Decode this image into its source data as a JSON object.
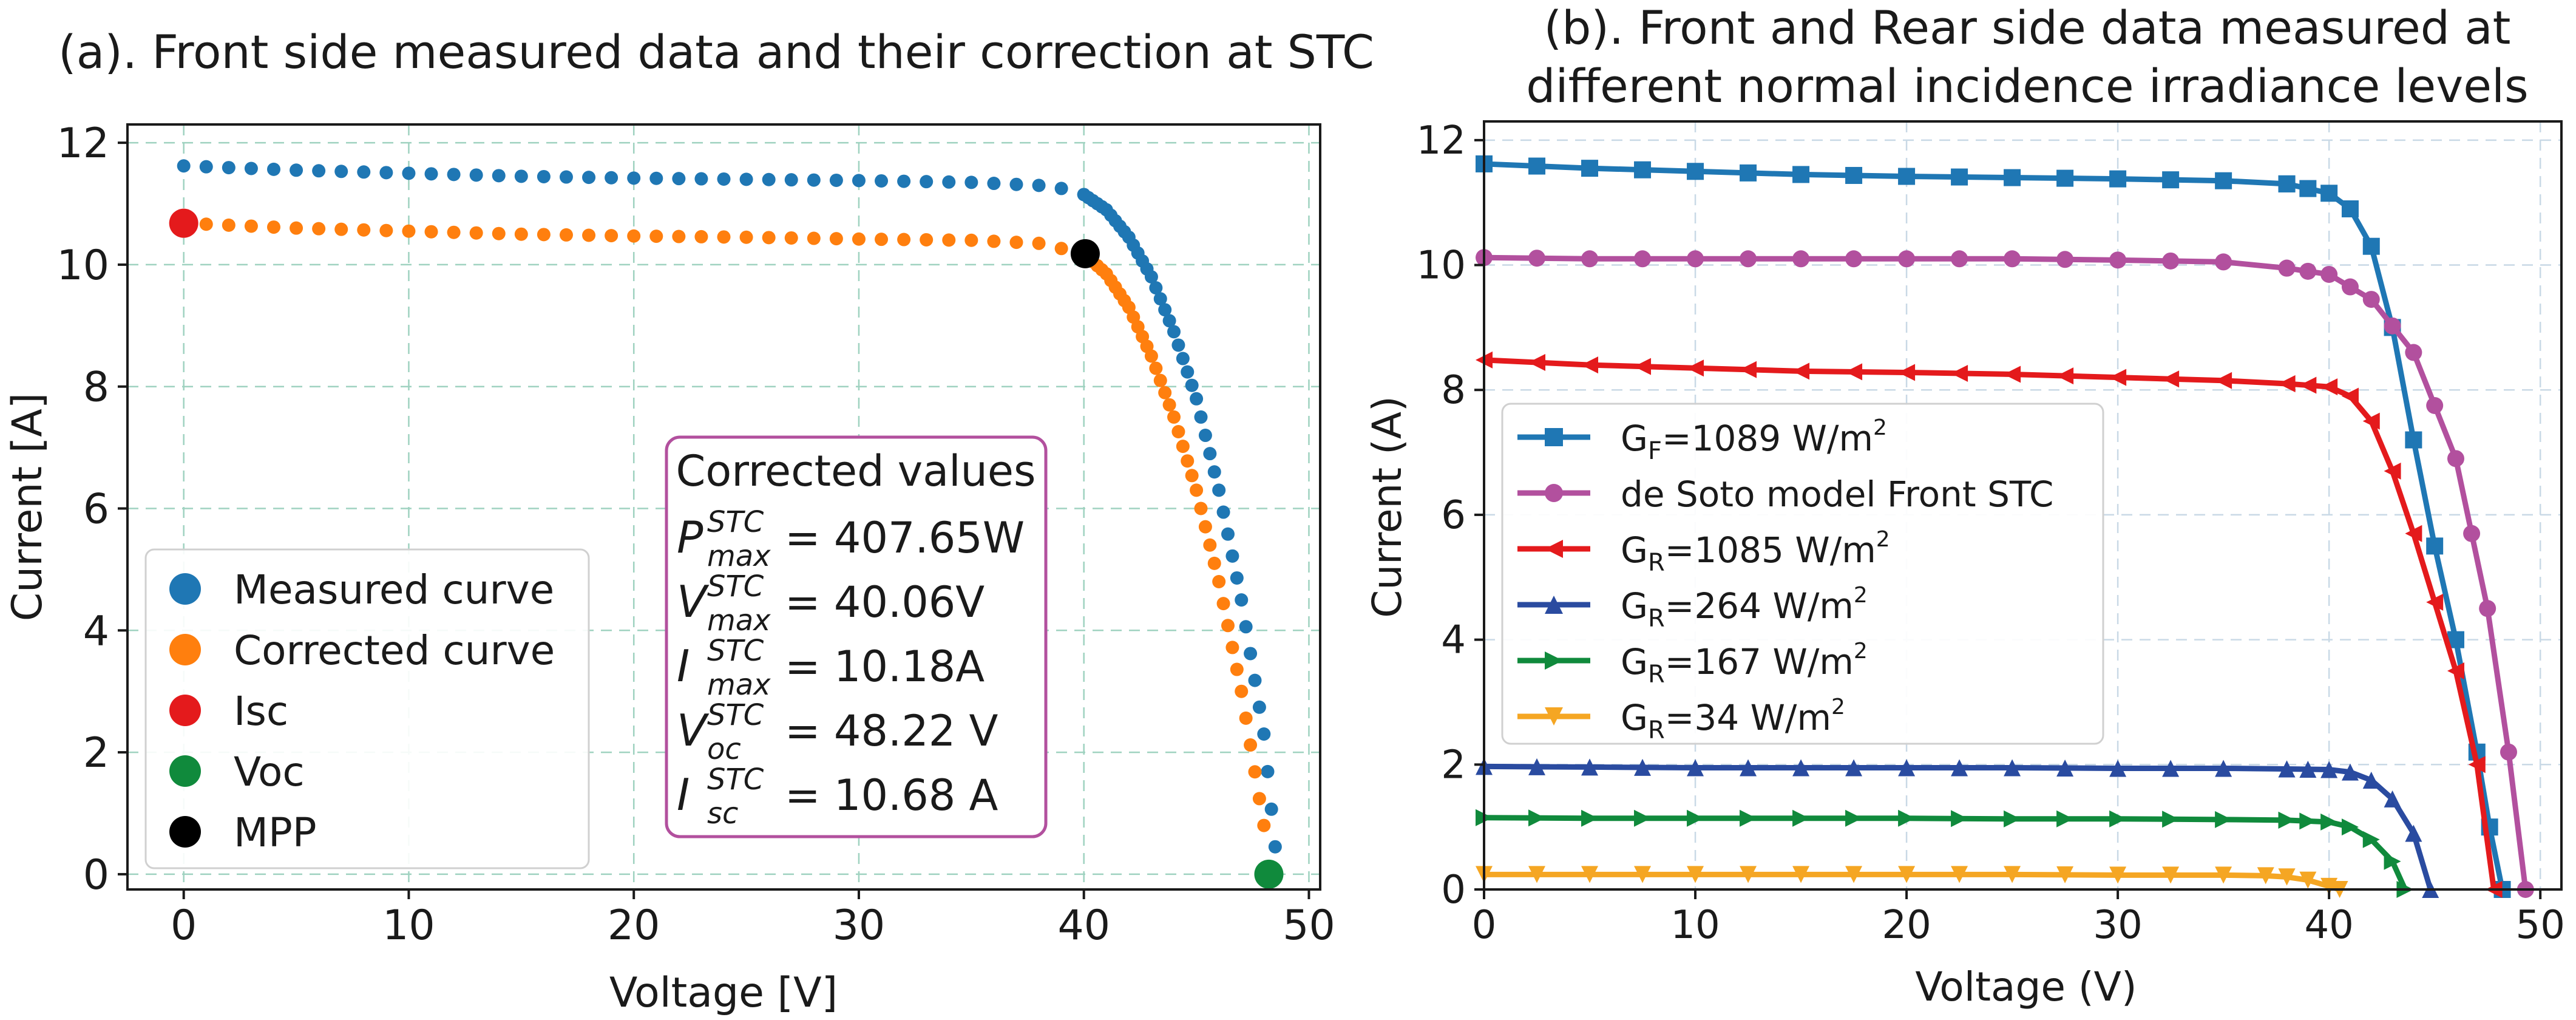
{
  "chart_data": [
    {
      "id": "a",
      "type": "scatter",
      "title": "(a). Front side measured data and their correction at STC",
      "xlabel": "Voltage [V]",
      "ylabel": "Current [A]",
      "xlim": [
        -2.5,
        50.5
      ],
      "ylim": [
        -0.25,
        12.3
      ],
      "xticks": [
        0,
        10,
        20,
        30,
        40,
        50
      ],
      "yticks": [
        0,
        2,
        4,
        6,
        8,
        10,
        12
      ],
      "grid": true,
      "legend": {
        "position": "lower-left",
        "entries": [
          {
            "label": "Measured curve",
            "color": "#1f77b4"
          },
          {
            "label": "Corrected curve",
            "color": "#ff7f0e"
          },
          {
            "label": "Isc",
            "color": "#e41a1c"
          },
          {
            "label": "Voc",
            "color": "#108a3c"
          },
          {
            "label": "MPP",
            "color": "#000000"
          }
        ]
      },
      "series": [
        {
          "name": "Measured curve",
          "color": "#1f77b4",
          "marker": "circle",
          "points": [
            [
              0,
              11.62
            ],
            [
              5,
              11.55
            ],
            [
              10,
              11.5
            ],
            [
              15,
              11.45
            ],
            [
              20,
              11.42
            ],
            [
              25,
              11.4
            ],
            [
              30,
              11.38
            ],
            [
              35,
              11.35
            ],
            [
              38,
              11.3
            ],
            [
              39,
              11.25
            ],
            [
              40,
              11.15
            ],
            [
              41,
              10.9
            ],
            [
              42,
              10.45
            ],
            [
              43,
              9.8
            ],
            [
              44,
              8.9
            ],
            [
              45,
              7.8
            ],
            [
              46,
              6.3
            ],
            [
              47,
              4.5
            ],
            [
              48,
              2.3
            ],
            [
              48.5,
              0.45
            ]
          ]
        },
        {
          "name": "Corrected curve",
          "color": "#ff7f0e",
          "marker": "circle",
          "points": [
            [
              0,
              10.68
            ],
            [
              5,
              10.6
            ],
            [
              10,
              10.55
            ],
            [
              15,
              10.5
            ],
            [
              20,
              10.47
            ],
            [
              25,
              10.45
            ],
            [
              30,
              10.42
            ],
            [
              35,
              10.4
            ],
            [
              38,
              10.35
            ],
            [
              40,
              10.18
            ],
            [
              41,
              9.85
            ],
            [
              42,
              9.3
            ],
            [
              43,
              8.5
            ],
            [
              44,
              7.5
            ],
            [
              45,
              6.3
            ],
            [
              46,
              4.8
            ],
            [
              47,
              3.0
            ],
            [
              48,
              0.8
            ],
            [
              48.22,
              0
            ]
          ]
        },
        {
          "name": "Isc",
          "color": "#e41a1c",
          "marker": "circle",
          "points": [
            [
              0,
              10.68
            ]
          ]
        },
        {
          "name": "Voc",
          "color": "#108a3c",
          "marker": "circle",
          "points": [
            [
              48.22,
              0
            ]
          ]
        },
        {
          "name": "MPP",
          "color": "#000000",
          "marker": "circle",
          "points": [
            [
              40.06,
              10.18
            ]
          ]
        }
      ],
      "annotation": {
        "heading": "Corrected values",
        "rows": [
          {
            "var": "P",
            "sup": "STC",
            "sub": "max",
            "value": "= 407.65W"
          },
          {
            "var": "V",
            "sup": "STC",
            "sub": "max",
            "value": "= 40.06V"
          },
          {
            "var": "I",
            "sup": "STC",
            "sub": "max",
            "value": "= 10.18A"
          },
          {
            "var": "V",
            "sup": "STC",
            "sub": "oc",
            "value": "= 48.22 V"
          },
          {
            "var": "I",
            "sup": "STC",
            "sub": "sc",
            "value": "= 10.68 A"
          }
        ]
      }
    },
    {
      "id": "b",
      "type": "line",
      "title_lines": [
        "(b). Front and Rear side data measured at",
        "different normal incidence irradiance levels"
      ],
      "xlabel": "Voltage (V)",
      "ylabel": "Current (A)",
      "xlim": [
        0,
        51
      ],
      "ylim": [
        0,
        12.3
      ],
      "xticks": [
        0,
        10,
        20,
        30,
        40,
        50
      ],
      "yticks": [
        0,
        2,
        4,
        6,
        8,
        10,
        12
      ],
      "grid": true,
      "legend": {
        "position": "center-left"
      },
      "series": [
        {
          "base": "G",
          "sub": "F",
          "rest": "=1089 W/m",
          "sup": "2",
          "color": "#1f77b4",
          "marker": "square",
          "points": [
            [
              0,
              11.62
            ],
            [
              5,
              11.55
            ],
            [
              10,
              11.5
            ],
            [
              15,
              11.45
            ],
            [
              20,
              11.42
            ],
            [
              25,
              11.4
            ],
            [
              30,
              11.38
            ],
            [
              35,
              11.35
            ],
            [
              38,
              11.3
            ],
            [
              40,
              11.15
            ],
            [
              41,
              10.9
            ],
            [
              42,
              10.3
            ],
            [
              43,
              9.0
            ],
            [
              44,
              7.2
            ],
            [
              45,
              5.5
            ],
            [
              46,
              4.0
            ],
            [
              47,
              2.2
            ],
            [
              47.6,
              1.0
            ],
            [
              48.2,
              0
            ]
          ]
        },
        {
          "base": "de Soto model Front STC",
          "sub": "",
          "rest": "",
          "sup": "",
          "color": "#b2509e",
          "marker": "circle",
          "points": [
            [
              0,
              10.12
            ],
            [
              5,
              10.1
            ],
            [
              10,
              10.1
            ],
            [
              15,
              10.1
            ],
            [
              20,
              10.1
            ],
            [
              25,
              10.1
            ],
            [
              30,
              10.08
            ],
            [
              35,
              10.05
            ],
            [
              38,
              9.95
            ],
            [
              40,
              9.85
            ],
            [
              42,
              9.45
            ],
            [
              44,
              8.6
            ],
            [
              46,
              6.9
            ],
            [
              47.5,
              4.5
            ],
            [
              48.5,
              2.2
            ],
            [
              49.3,
              0
            ]
          ]
        },
        {
          "base": "G",
          "sub": "R",
          "rest": "=1085 W/m",
          "sup": "2",
          "color": "#e41a1c",
          "marker": "triangle-left",
          "points": [
            [
              0,
              8.48
            ],
            [
              5,
              8.4
            ],
            [
              10,
              8.35
            ],
            [
              15,
              8.3
            ],
            [
              20,
              8.28
            ],
            [
              25,
              8.25
            ],
            [
              30,
              8.2
            ],
            [
              35,
              8.15
            ],
            [
              38,
              8.1
            ],
            [
              40,
              8.05
            ],
            [
              41,
              7.9
            ],
            [
              42,
              7.5
            ],
            [
              43,
              6.7
            ],
            [
              44,
              5.7
            ],
            [
              45,
              4.6
            ],
            [
              46,
              3.5
            ],
            [
              47,
              2.0
            ],
            [
              47.8,
              0
            ]
          ]
        },
        {
          "base": "G",
          "sub": "R",
          "rest": "=264 W/m",
          "sup": "2",
          "color": "#2a4ba0",
          "marker": "triangle-up",
          "points": [
            [
              0,
              1.97
            ],
            [
              5,
              1.96
            ],
            [
              10,
              1.95
            ],
            [
              15,
              1.95
            ],
            [
              20,
              1.95
            ],
            [
              25,
              1.95
            ],
            [
              30,
              1.94
            ],
            [
              35,
              1.94
            ],
            [
              38,
              1.93
            ],
            [
              40,
              1.92
            ],
            [
              41,
              1.88
            ],
            [
              42,
              1.75
            ],
            [
              43,
              1.45
            ],
            [
              44,
              0.9
            ],
            [
              44.8,
              0
            ]
          ]
        },
        {
          "base": "G",
          "sub": "R",
          "rest": "=167 W/m",
          "sup": "2",
          "color": "#108a3c",
          "marker": "triangle-right",
          "points": [
            [
              0,
              1.15
            ],
            [
              5,
              1.14
            ],
            [
              10,
              1.14
            ],
            [
              15,
              1.14
            ],
            [
              20,
              1.14
            ],
            [
              25,
              1.13
            ],
            [
              30,
              1.13
            ],
            [
              35,
              1.12
            ],
            [
              38,
              1.11
            ],
            [
              40,
              1.08
            ],
            [
              41,
              1.0
            ],
            [
              42,
              0.8
            ],
            [
              43,
              0.45
            ],
            [
              43.6,
              0
            ]
          ]
        },
        {
          "base": "G",
          "sub": "R",
          "rest": "=34 W/m",
          "sup": "2",
          "color": "#f5a623",
          "marker": "triangle-down",
          "points": [
            [
              0,
              0.24
            ],
            [
              5,
              0.24
            ],
            [
              10,
              0.24
            ],
            [
              15,
              0.24
            ],
            [
              20,
              0.24
            ],
            [
              25,
              0.24
            ],
            [
              30,
              0.23
            ],
            [
              35,
              0.23
            ],
            [
              37,
              0.22
            ],
            [
              38,
              0.2
            ],
            [
              39,
              0.15
            ],
            [
              40,
              0.05
            ],
            [
              40.5,
              0
            ]
          ]
        }
      ]
    }
  ]
}
